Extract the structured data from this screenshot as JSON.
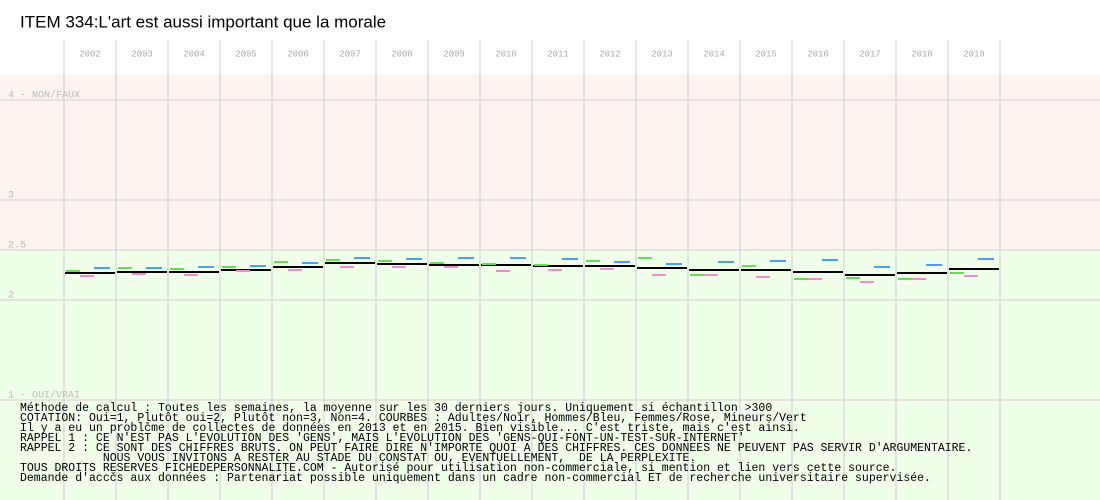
{
  "chart_data": {
    "type": "dash",
    "title": "ITEM 334:L'art est aussi important que la morale",
    "categories": [
      "2002",
      "2003",
      "2004",
      "2005",
      "2006",
      "2007",
      "2008",
      "2009",
      "2010",
      "2011",
      "2012",
      "2013",
      "2014",
      "2015",
      "2016",
      "2017",
      "2018",
      "2019"
    ],
    "series": [
      {
        "color": "#000000",
        "values": [
          2.27,
          2.28,
          2.28,
          2.3,
          2.33,
          2.37,
          2.36,
          2.35,
          2.35,
          2.34,
          2.34,
          2.32,
          2.3,
          2.3,
          2.28,
          2.25,
          2.27,
          2.31
        ]
      },
      {
        "color": "#4a9cff",
        "values": [
          2.32,
          2.32,
          2.33,
          2.34,
          2.37,
          2.42,
          2.41,
          2.42,
          2.42,
          2.41,
          2.38,
          2.36,
          2.38,
          2.39,
          2.4,
          2.33,
          2.35,
          2.41
        ]
      },
      {
        "color": "#f28ccc",
        "values": [
          2.24,
          2.26,
          2.25,
          2.29,
          2.3,
          2.33,
          2.33,
          2.33,
          2.29,
          2.3,
          2.31,
          2.25,
          2.25,
          2.23,
          2.21,
          2.18,
          2.21,
          2.24
        ]
      },
      {
        "color": "#66dd55",
        "values": [
          2.29,
          2.32,
          2.31,
          2.33,
          2.38,
          2.4,
          2.39,
          2.37,
          2.36,
          2.35,
          2.39,
          2.42,
          2.25,
          2.34,
          2.21,
          2.22,
          2.21,
          2.27
        ]
      }
    ],
    "ylim": [
      0,
      4.25
    ],
    "yticks": [
      {
        "value": 4,
        "label": "4 - NON/FAUX"
      },
      3,
      2.5,
      2,
      {
        "value": 1,
        "label": "1 - OUI/VRAI"
      }
    ],
    "grid": true,
    "bands": [
      {
        "from": 2.5,
        "to": 4.25,
        "color": "#fdf3ef"
      },
      {
        "from": 0,
        "to": 2.5,
        "color": "#efffea"
      }
    ],
    "notes": [
      "Méthode de calcul : Toutes les semaines, la moyenne sur les 30 derniers jours. Uniquement si échantillon >300",
      "COTATION: Oui=1, Plutôt oui=2, Plutôt non=3, Non=4. COURBES : Adultes/Noir, Hommes/Bleu, Femmes/Rose, Mineurs/Vert",
      "Il y a eu un problčme de collectes de données en 2013 et en 2015. Bien visible... C'est triste, mais c'est ainsi.",
      "RAPPEL 1 : CE N'EST PAS L'EVOLUTION DES 'GENS', MAIS L'EVOLUTION DES 'GENS-QUI-FONT-UN-TEST-SUR-INTERNET'",
      "RAPPEL 2 : CE SONT DES CHIFFRES BRUTS. ON PEUT FAIRE DIRE N'IMPORTE QUOI A DES CHIFFRES. CES DONNEES NE PEUVENT PAS SERVIR D'ARGUMENTAIRE.",
      "            NOUS VOUS INVITONS A RESTER AU STADE DU CONSTAT OU, EVENTUELLEMENT,  DE LA PERPLEXITE.",
      "TOUS DROITS RESERVES FICHEDEPERSONNALITE.COM - Autorisé pour utilisation non-commerciale, si mention et lien vers cette source.",
      "Demande d'accčs aux données : Partenariat possible uniquement dans un cadre non-commercial ET de recherche universitaire supervisée."
    ]
  }
}
